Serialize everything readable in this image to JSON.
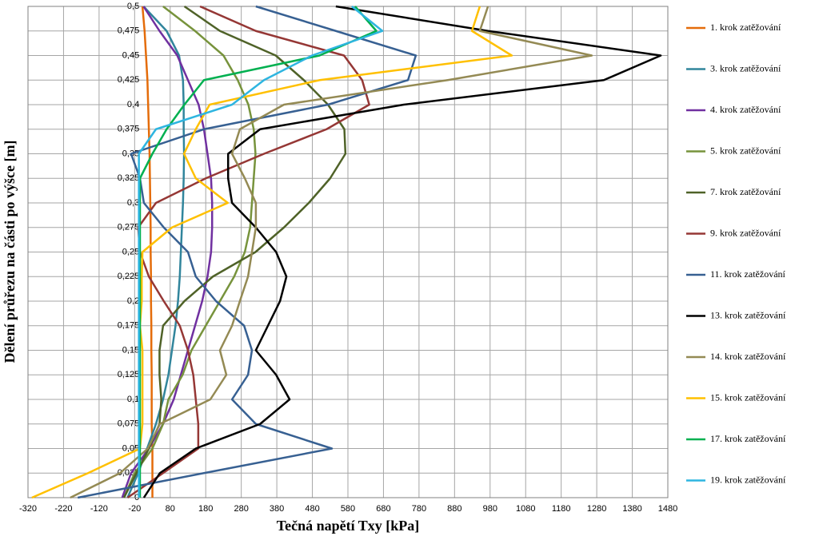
{
  "chart_data": {
    "type": "line",
    "xlabel": "Tečná napětí Txy [kPa]",
    "ylabel": "Dělení průřezu na části po výšce [m]",
    "y": [
      0,
      0.025,
      0.05,
      0.075,
      0.1,
      0.125,
      0.15,
      0.175,
      0.2,
      0.225,
      0.25,
      0.275,
      0.3,
      0.325,
      0.35,
      0.375,
      0.4,
      0.425,
      0.45,
      0.475,
      0.5
    ],
    "xlim": [
      -320,
      1480
    ],
    "xticks": [
      -320,
      -220,
      -120,
      -20,
      80,
      180,
      280,
      380,
      480,
      580,
      680,
      780,
      880,
      980,
      1080,
      1180,
      1280,
      1380,
      1480
    ],
    "ylim": [
      0,
      0.5
    ],
    "yticks": [
      0,
      {
        "value": 0.025,
        "label": "0,025"
      },
      {
        "value": 0.05,
        "label": "0,05"
      },
      {
        "value": 0.075,
        "label": "0,075"
      },
      {
        "value": 0.1,
        "label": "0,1"
      },
      {
        "value": 0.125,
        "label": "0,125"
      },
      {
        "value": 0.15,
        "label": "0,15"
      },
      {
        "value": 0.175,
        "label": "0,175"
      },
      {
        "value": 0.2,
        "label": "0,2"
      },
      {
        "value": 0.225,
        "label": "0,225"
      },
      {
        "value": 0.25,
        "label": "0,25"
      },
      {
        "value": 0.275,
        "label": "0,275"
      },
      {
        "value": 0.3,
        "label": "0,3"
      },
      {
        "value": 0.325,
        "label": "0,325"
      },
      {
        "value": 0.35,
        "label": "0,35"
      },
      {
        "value": 0.375,
        "label": "0,375"
      },
      {
        "value": 0.4,
        "label": "0,4"
      },
      {
        "value": 0.425,
        "label": "0,425"
      },
      {
        "value": 0.45,
        "label": "0,45"
      },
      {
        "value": 0.475,
        "label": "0,475"
      },
      {
        "value": 0.5,
        "label": "0,5"
      }
    ],
    "grid": true,
    "legend": "right",
    "series": [
      {
        "name": "1. krok zatěžování",
        "color": "#e46c0a",
        "values": [
          30,
          30,
          30,
          28,
          28,
          28,
          27,
          27,
          26,
          26,
          25,
          25,
          24,
          23,
          22,
          20,
          18,
          16,
          12,
          8,
          2
        ]
      },
      {
        "name": "3. krok zatěžování",
        "color": "#31859c",
        "values": [
          -40,
          -10,
          15,
          40,
          60,
          75,
          85,
          95,
          102,
          107,
          110,
          113,
          116,
          118,
          119,
          118,
          118,
          116,
          105,
          70,
          5
        ]
      },
      {
        "name": "4. krok zatěžování",
        "color": "#7030a0",
        "values": [
          -55,
          -30,
          20,
          60,
          90,
          110,
          130,
          150,
          170,
          185,
          195,
          198,
          198,
          195,
          185,
          175,
          160,
          130,
          100,
          50,
          5
        ]
      },
      {
        "name": "5. krok zatěžování",
        "color": "#77933c",
        "values": [
          -50,
          -20,
          30,
          60,
          75,
          115,
          140,
          180,
          220,
          260,
          290,
          305,
          310,
          315,
          320,
          315,
          300,
          270,
          230,
          150,
          60
        ]
      },
      {
        "name": "7. krok zatěžování",
        "color": "#4f6228",
        "values": [
          -50,
          -15,
          20,
          50,
          55,
          50,
          50,
          60,
          120,
          200,
          320,
          400,
          470,
          530,
          573,
          570,
          524,
          456,
          377,
          220,
          120
        ]
      },
      {
        "name": "9. krok zatěžování",
        "color": "#953735",
        "values": [
          -40,
          60,
          159,
          159,
          152,
          145,
          130,
          107,
          62,
          20,
          -5,
          -10,
          40,
          180,
          344,
          520,
          640,
          620,
          569,
          321,
          164
        ]
      },
      {
        "name": "11. krok zatěžování",
        "color": "#376092",
        "values": [
          -180,
          175,
          535,
          321,
          254,
          299,
          310,
          288,
          209,
          152,
          130,
          62,
          6,
          -5,
          -30,
          175,
          524,
          749,
          771,
          546,
          321
        ]
      },
      {
        "name": "13. krok zatěžování",
        "color": "#000000",
        "values": [
          6,
          51,
          152,
          333,
          416,
          378,
          321,
          355,
          389,
          407,
          378,
          321,
          254,
          243,
          243,
          333,
          737,
          1300,
          1460,
          974,
          546
        ]
      },
      {
        "name": "14. krok zatěžování",
        "color": "#948a54",
        "values": [
          -201,
          -61,
          17,
          51,
          193,
          238,
          220,
          254,
          276,
          299,
          310,
          321,
          321,
          290,
          254,
          276,
          400,
          861,
          1266,
          951,
          974
        ]
      },
      {
        "name": "15. krok zatěžování",
        "color": "#ffc000",
        "values": [
          -309,
          -151,
          -5,
          2,
          2,
          2,
          2,
          -5,
          0,
          0,
          2,
          85,
          242,
          152,
          119,
          152,
          191,
          501,
          1041,
          929,
          951
        ]
      },
      {
        "name": "17. krok zatěžování",
        "color": "#00b050",
        "values": [
          -5,
          -5,
          -5,
          -5,
          -5,
          -5,
          -5,
          -5,
          -5,
          -5,
          -5,
          -5,
          -5,
          -5,
          30,
          70,
          120,
          175,
          500,
          660,
          600
        ]
      },
      {
        "name": "19. krok zatěžování",
        "color": "#2eb5e0",
        "values": [
          -8,
          -8,
          -8,
          -8,
          -8,
          -8,
          -8,
          -8,
          -8,
          -8,
          -8,
          -8,
          -8,
          -8,
          -8,
          40,
          254,
          344,
          479,
          677,
          591
        ]
      }
    ]
  }
}
